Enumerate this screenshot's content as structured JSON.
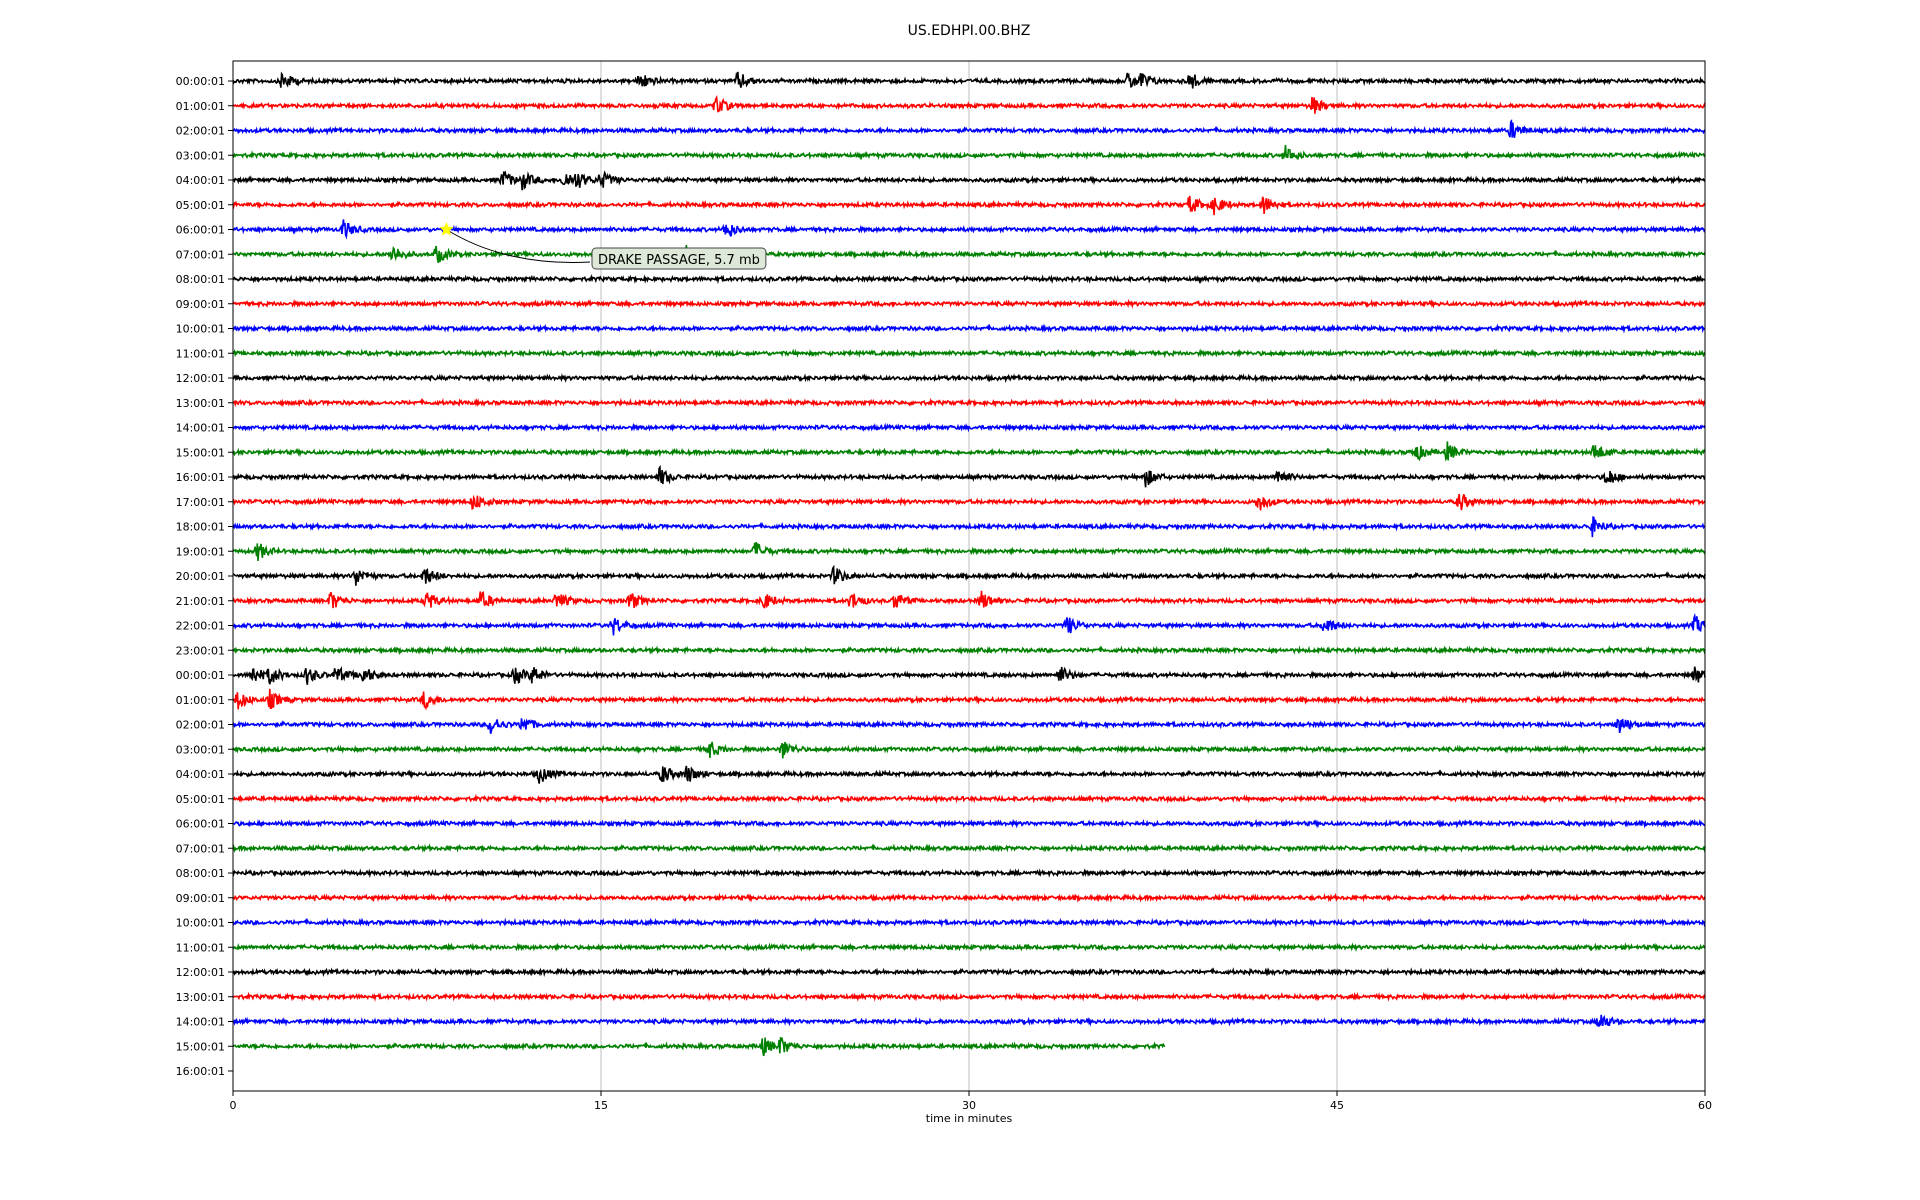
{
  "chart_data": {
    "type": "line",
    "title": "US.EDHPI.00.BHZ",
    "xlabel": "time in minutes",
    "ylabel": "",
    "xlim": [
      0,
      60
    ],
    "xticks": [
      "0",
      "15",
      "30",
      "45",
      "60"
    ],
    "grid_x": true,
    "trace_colors": [
      "#000000",
      "#ff0000",
      "#0000ff",
      "#008000"
    ],
    "row_labels": [
      "00:00:01",
      "01:00:01",
      "02:00:01",
      "03:00:01",
      "04:00:01",
      "05:00:01",
      "06:00:01",
      "07:00:01",
      "08:00:01",
      "09:00:01",
      "10:00:01",
      "11:00:01",
      "12:00:01",
      "13:00:01",
      "14:00:01",
      "15:00:01",
      "16:00:01",
      "17:00:01",
      "18:00:01",
      "19:00:01",
      "20:00:01",
      "21:00:01",
      "22:00:01",
      "23:00:01",
      "00:00:01",
      "01:00:01",
      "02:00:01",
      "03:00:01",
      "04:00:01",
      "05:00:01",
      "06:00:01",
      "07:00:01",
      "08:00:01",
      "09:00:01",
      "10:00:01",
      "11:00:01",
      "12:00:01",
      "13:00:01",
      "14:00:01",
      "15:00:01",
      "16:00:01"
    ],
    "last_trace_end_minute": 38,
    "events": [
      {
        "row": 0,
        "minutes": [
          2,
          16.6,
          20.6,
          36.5,
          37,
          39
        ]
      },
      {
        "row": 1,
        "minutes": [
          19.7,
          44
        ]
      },
      {
        "row": 2,
        "minutes": [
          52.1
        ]
      },
      {
        "row": 3,
        "minutes": [
          42.9
        ]
      },
      {
        "row": 4,
        "minutes": [
          11,
          11.8,
          13.5,
          14,
          15
        ]
      },
      {
        "row": 5,
        "minutes": [
          39,
          40,
          42
        ]
      },
      {
        "row": 6,
        "minutes": [
          4.5,
          20.1
        ]
      },
      {
        "row": 7,
        "minutes": [
          6.5,
          8.3,
          18.5,
          20.5
        ]
      },
      {
        "row": 15,
        "minutes": [
          48.2,
          49.5,
          55.5
        ]
      },
      {
        "row": 16,
        "minutes": [
          17.4,
          37.2,
          42.6,
          56
        ]
      },
      {
        "row": 17,
        "minutes": [
          9.8,
          41.8,
          50
        ]
      },
      {
        "row": 18,
        "minutes": [
          55.4
        ]
      },
      {
        "row": 19,
        "minutes": [
          1,
          21.3
        ]
      },
      {
        "row": 20,
        "minutes": [
          5,
          7.8,
          24.5
        ]
      },
      {
        "row": 21,
        "minutes": [
          4,
          7.9,
          10.1,
          13.2,
          16.2,
          21.6,
          25.2,
          27,
          30.5
        ]
      },
      {
        "row": 22,
        "minutes": [
          15.5,
          34,
          44.5,
          59.6
        ]
      },
      {
        "row": 24,
        "minutes": [
          0.8,
          1.5,
          3,
          4.2,
          5.3,
          11.5,
          12.2,
          33.7,
          59.6
        ]
      },
      {
        "row": 25,
        "minutes": [
          0.2,
          1.5,
          7.8
        ]
      },
      {
        "row": 26,
        "minutes": [
          10.5,
          11.8,
          56.5
        ]
      },
      {
        "row": 27,
        "minutes": [
          19.4,
          22.4
        ]
      },
      {
        "row": 28,
        "minutes": [
          12.5,
          17.5,
          18.5
        ]
      },
      {
        "row": 38,
        "minutes": [
          55.7
        ]
      },
      {
        "row": 39,
        "minutes": [
          21.6,
          22.3
        ]
      }
    ],
    "annotations": [
      {
        "label": "DRAKE PASSAGE, 5.7 mb",
        "row": 6,
        "minute": 8.7,
        "marker": "star",
        "marker_color": "#ffff00"
      }
    ]
  }
}
